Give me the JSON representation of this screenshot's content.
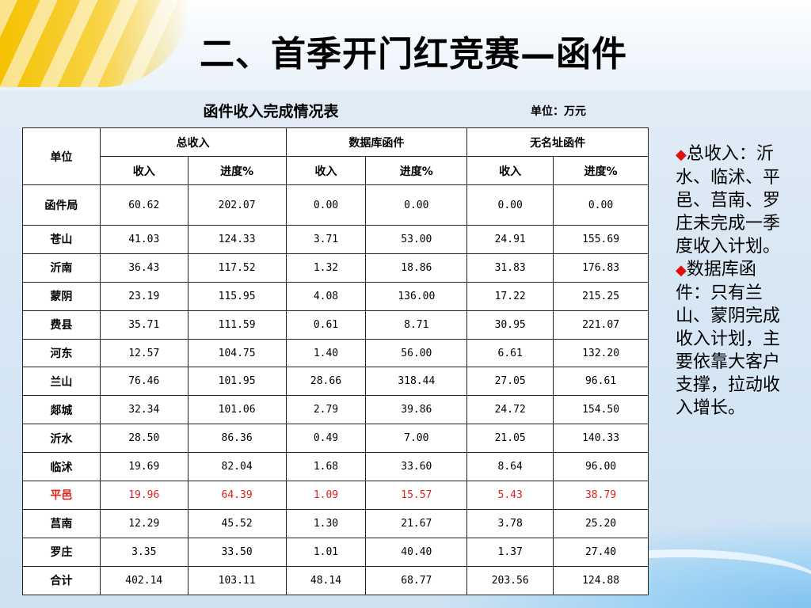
{
  "title": "二、首季开门红竞赛—函件",
  "table_caption": "函件收入完成情况表",
  "unit_note": "单位：万元",
  "header": {
    "unit": "单位",
    "groups": [
      "总收入",
      "数据库函件",
      "无名址函件"
    ],
    "sub": [
      "收入",
      "进度%",
      "收入",
      "进度%",
      "收入",
      "进度%"
    ]
  },
  "rows": [
    {
      "name": "函件局",
      "vals": [
        "60.62",
        "202.07",
        "0.00",
        "0.00",
        "0.00",
        "0.00"
      ],
      "highlight": false
    },
    {
      "name": "苍山",
      "vals": [
        "41.03",
        "124.33",
        "3.71",
        "53.00",
        "24.91",
        "155.69"
      ],
      "highlight": false
    },
    {
      "name": "沂南",
      "vals": [
        "36.43",
        "117.52",
        "1.32",
        "18.86",
        "31.83",
        "176.83"
      ],
      "highlight": false
    },
    {
      "name": "蒙阴",
      "vals": [
        "23.19",
        "115.95",
        "4.08",
        "136.00",
        "17.22",
        "215.25"
      ],
      "highlight": false
    },
    {
      "name": "费县",
      "vals": [
        "35.71",
        "111.59",
        "0.61",
        "8.71",
        "30.95",
        "221.07"
      ],
      "highlight": false
    },
    {
      "name": "河东",
      "vals": [
        "12.57",
        "104.75",
        "1.40",
        "56.00",
        "6.61",
        "132.20"
      ],
      "highlight": false
    },
    {
      "name": "兰山",
      "vals": [
        "76.46",
        "101.95",
        "28.66",
        "318.44",
        "27.05",
        "96.61"
      ],
      "highlight": false
    },
    {
      "name": "郯城",
      "vals": [
        "32.34",
        "101.06",
        "2.79",
        "39.86",
        "24.72",
        "154.50"
      ],
      "highlight": false
    },
    {
      "name": "沂水",
      "vals": [
        "28.50",
        "86.36",
        "0.49",
        "7.00",
        "21.05",
        "140.33"
      ],
      "highlight": false
    },
    {
      "name": "临沭",
      "vals": [
        "19.69",
        "82.04",
        "1.68",
        "33.60",
        "8.64",
        "96.00"
      ],
      "highlight": false
    },
    {
      "name": "平邑",
      "vals": [
        "19.96",
        "64.39",
        "1.09",
        "15.57",
        "5.43",
        "38.79"
      ],
      "highlight": true
    },
    {
      "name": "莒南",
      "vals": [
        "12.29",
        "45.52",
        "1.30",
        "21.67",
        "3.78",
        "25.20"
      ],
      "highlight": false
    },
    {
      "name": "罗庄",
      "vals": [
        "3.35",
        "33.50",
        "1.01",
        "40.40",
        "1.37",
        "27.40"
      ],
      "highlight": false
    },
    {
      "name": "合计",
      "vals": [
        "402.14",
        "103.11",
        "48.14",
        "68.77",
        "203.56",
        "124.88"
      ],
      "highlight": false
    }
  ],
  "highlight_color": "#e0201d",
  "notes": [
    {
      "bullet": "◆",
      "text": "总收入：沂水、临沭、平邑、莒南、罗庄未完成一季度收入计划。"
    },
    {
      "bullet": "◆",
      "text": "数据库函件：只有兰山、蒙阴完成收入计划，主要依靠大客户支撑，拉动收入增长。"
    }
  ]
}
